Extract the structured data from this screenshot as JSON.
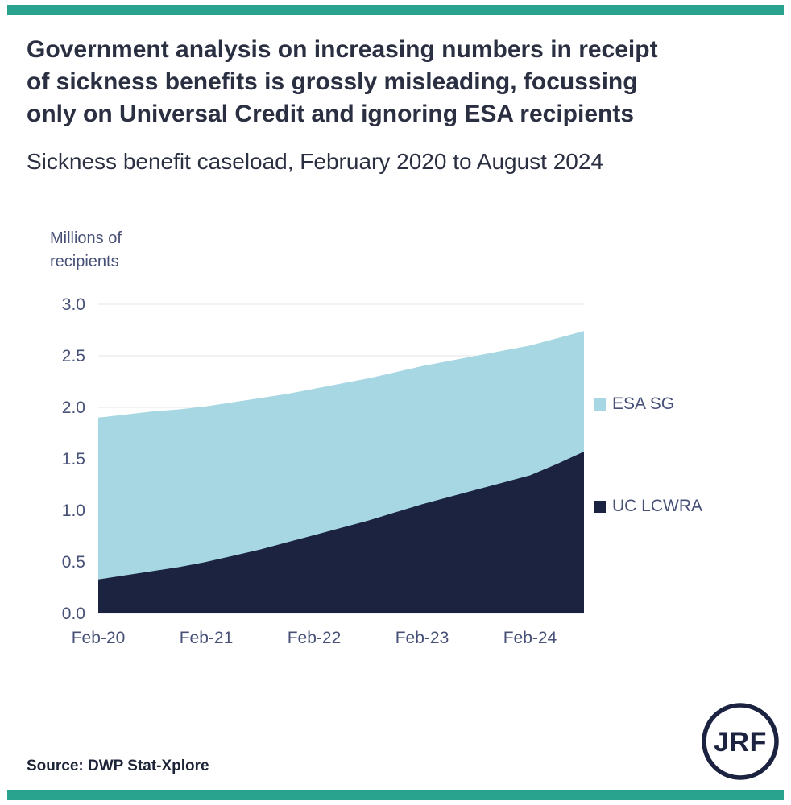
{
  "page": {
    "title_lines": [
      "Government analysis on increasing numbers in receipt",
      "of sickness benefits is grossly misleading, focussing",
      "only on Universal Credit and ignoring ESA recipients"
    ],
    "subtitle": "Sickness benefit caseload, February 2020 to August 2024",
    "source": "Source: DWP Stat-Xplore",
    "logo_text": "JRF"
  },
  "colors": {
    "accent_teal": "#2AA38E",
    "series_dark": "#1B2340",
    "series_light": "#A6D7E2",
    "axis_text": "#475077",
    "title_text": "#2B2F42",
    "grid": "#E6E6E6"
  },
  "chart_data": {
    "type": "area",
    "stacked": true,
    "title": "Sickness benefit caseload, February 2020 to August 2024",
    "ylabel": "Millions of recipients",
    "x_unit": "months since Feb-2020",
    "x": [
      0,
      3,
      6,
      9,
      12,
      15,
      18,
      21,
      24,
      27,
      30,
      33,
      36,
      39,
      42,
      45,
      48,
      51,
      54
    ],
    "series": [
      {
        "name": "UC LCWRA",
        "color_key": "series_dark",
        "values": [
          0.33,
          0.37,
          0.41,
          0.45,
          0.5,
          0.56,
          0.62,
          0.69,
          0.76,
          0.83,
          0.9,
          0.98,
          1.06,
          1.13,
          1.2,
          1.27,
          1.34,
          1.45,
          1.57
        ]
      },
      {
        "name": "ESA SG",
        "color_key": "series_light",
        "values": [
          1.57,
          1.56,
          1.55,
          1.53,
          1.51,
          1.49,
          1.47,
          1.44,
          1.42,
          1.4,
          1.38,
          1.36,
          1.34,
          1.32,
          1.3,
          1.28,
          1.26,
          1.22,
          1.17
        ]
      }
    ],
    "ylim": [
      0,
      3.0
    ],
    "yticks": [
      "0.0",
      "0.5",
      "1.0",
      "1.5",
      "2.0",
      "2.5",
      "3.0"
    ],
    "xticks": [
      {
        "label": "Feb-20",
        "x": 0
      },
      {
        "label": "Feb-21",
        "x": 12
      },
      {
        "label": "Feb-22",
        "x": 24
      },
      {
        "label": "Feb-23",
        "x": 36
      },
      {
        "label": "Feb-24",
        "x": 48
      }
    ],
    "legend": [
      {
        "label": "ESA SG",
        "color_key": "series_light"
      },
      {
        "label": "UC LCWRA",
        "color_key": "series_dark"
      }
    ],
    "legend_position": "right",
    "grid": "horizontal"
  }
}
